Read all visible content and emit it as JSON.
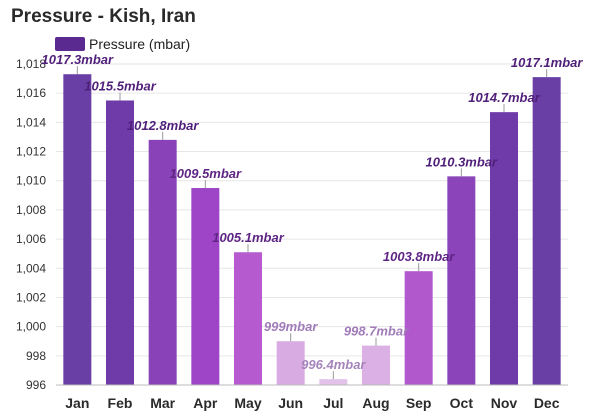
{
  "title": "Pressure - Kish, Iran",
  "legend": {
    "label": "Pressure (mbar)",
    "color": "#5b2a91"
  },
  "chart_data": {
    "type": "bar",
    "title": "Pressure - Kish, Iran",
    "xlabel": "",
    "ylabel": "",
    "ylim": [
      996,
      1018
    ],
    "yticks": [
      996,
      998,
      1000,
      1002,
      1004,
      1006,
      1008,
      1010,
      1012,
      1014,
      1016,
      1018
    ],
    "ytick_labels": [
      "996",
      "998",
      "1,000",
      "1,002",
      "1,004",
      "1,006",
      "1,008",
      "1,010",
      "1,012",
      "1,014",
      "1,016",
      "1,018"
    ],
    "categories": [
      "Jan",
      "Feb",
      "Mar",
      "Apr",
      "May",
      "Jun",
      "Jul",
      "Aug",
      "Sep",
      "Oct",
      "Nov",
      "Dec"
    ],
    "series": [
      {
        "name": "Pressure (mbar)",
        "values": [
          1017.3,
          1015.5,
          1012.8,
          1009.5,
          1005.1,
          999,
          996.4,
          998.7,
          1003.8,
          1010.3,
          1014.7,
          1017.1
        ],
        "labels": [
          "1017.3mbar",
          "1015.5mbar",
          "1012.8mbar",
          "1009.5mbar",
          "1005.1mbar",
          "999mbar",
          "996.4mbar",
          "998.7mbar",
          "1003.8mbar",
          "1010.3mbar",
          "1014.7mbar",
          "1017.1mbar"
        ],
        "colors": [
          "#6a3fa5",
          "#6f3ba8",
          "#8a42b8",
          "#9d45c6",
          "#b65bcf",
          "#d8abe3",
          "#e3c2ea",
          "#dbb1e5",
          "#b058cc",
          "#8c44bb",
          "#6f3ba8",
          "#6a3fa5"
        ],
        "label_colors": [
          "#4f1f7a",
          "#4f1f7a",
          "#4f1f7a",
          "#5e2585",
          "#5e2585",
          "#a07bb8",
          "#a584bb",
          "#a07bb8",
          "#5e2585",
          "#4f1f7a",
          "#4f1f7a",
          "#4f1f7a"
        ]
      }
    ],
    "grid": true,
    "legend_position": "top-left"
  }
}
